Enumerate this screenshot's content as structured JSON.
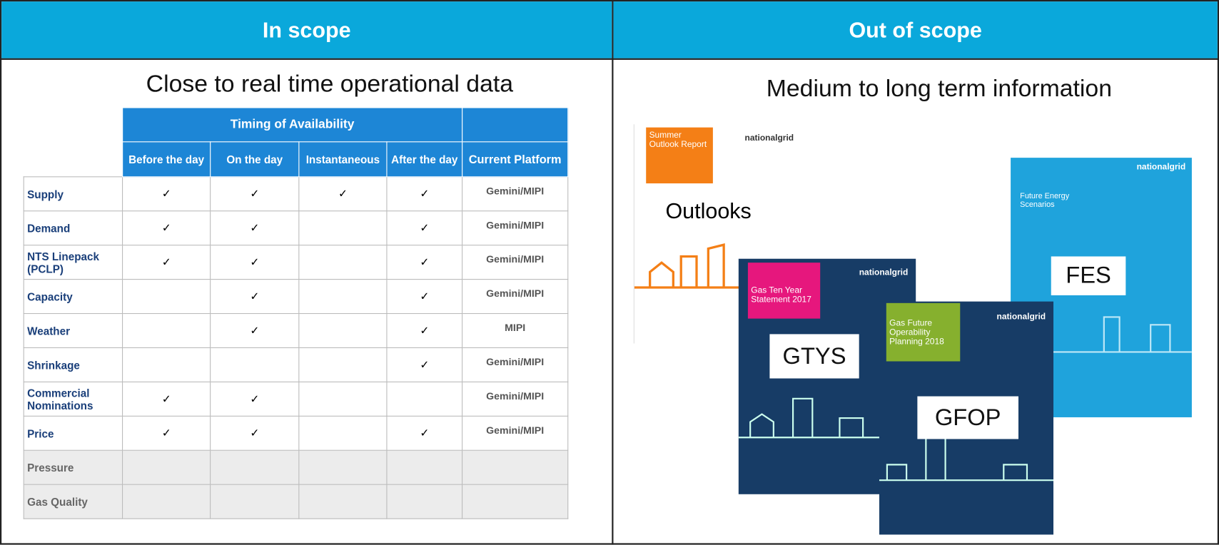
{
  "header": {
    "left": "In scope",
    "right": "Out of scope"
  },
  "left": {
    "subtitle": "Close to real time operational data",
    "table": {
      "group_header": "Timing of Availability",
      "columns": [
        "Before the day",
        "On the day",
        "Instantaneous",
        "After the day",
        "Current Platform"
      ],
      "rows": [
        [
          "Supply",
          "✓",
          "✓",
          "✓",
          "✓",
          "Gemini/MIPI"
        ],
        [
          "Demand",
          "✓",
          "✓",
          null,
          "✓",
          "Gemini/MIPI"
        ],
        [
          "NTS Linepack (PCLP)",
          "✓",
          "✓",
          null,
          "✓",
          "Gemini/MIPI"
        ],
        [
          "Capacity",
          null,
          "✓",
          null,
          "✓",
          "Gemini/MIPI"
        ],
        [
          "Weather",
          null,
          "✓",
          null,
          "✓",
          "MIPI"
        ],
        [
          "Shrinkage",
          null,
          null,
          null,
          "✓",
          "Gemini/MIPI"
        ],
        [
          "Commercial Nominations",
          "✓",
          "✓",
          null,
          null,
          "Gemini/MIPI"
        ],
        [
          "Price",
          "✓",
          "✓",
          null,
          "✓",
          "Gemini/MIPI"
        ],
        [
          "Pressure",
          null,
          null,
          null,
          null,
          null
        ],
        [
          "Gas Quality",
          null,
          null,
          null,
          null,
          null
        ]
      ]
    }
  },
  "right": {
    "subtitle": "Medium to long term information",
    "covers": [
      {
        "title": "Summer Outlook Report",
        "brand": "nationalgrid",
        "label": "Outlooks"
      },
      {
        "title": "Future Energy Scenarios",
        "brand": "nationalgrid",
        "label": "FES"
      },
      {
        "title": "Gas Ten Year Statement 2017",
        "brand": "nationalgrid",
        "label": "GTYS"
      },
      {
        "title": "Gas Future Operability Planning 2018",
        "brand": "nationalgrid",
        "label": "GFOP"
      }
    ]
  }
}
